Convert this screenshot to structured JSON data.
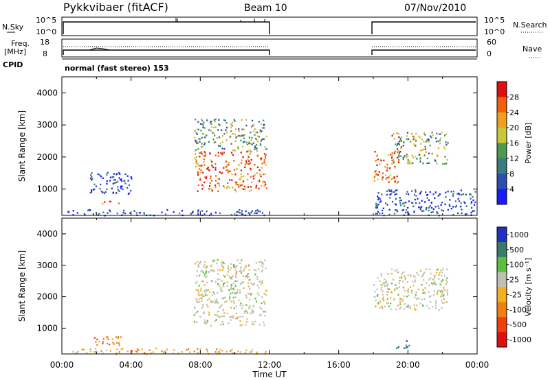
{
  "header": {
    "station": "Pykkvibaer (fitACF)",
    "beam": "Beam 10",
    "date": "07/Nov/2010"
  },
  "strip_labels": {
    "nsky": "N.Sky",
    "nsearch": "N.Search",
    "freq": "Freq.",
    "mhz": "[MHz]",
    "nave": "Nave",
    "cpid": "CPID",
    "cpid_text": "normal (fast stereo) 153",
    "noise_ticks": [
      "10^5",
      "10^0"
    ],
    "freq_ticks": [
      "18",
      "8"
    ],
    "nave_ticks": [
      "60",
      "0"
    ]
  },
  "chart_data": [
    {
      "type": "heatmap",
      "panel": "power",
      "ylabel": "Slant Range [km]",
      "xlabel": "",
      "x_ticks": [
        "00:00",
        "04:00",
        "08:00",
        "12:00",
        "16:00",
        "20:00",
        "00:00"
      ],
      "x_range_hours": [
        0,
        24
      ],
      "y_ticks": [
        1000,
        2000,
        3000,
        4000
      ],
      "y_range_km": [
        180,
        4500
      ],
      "colorbar": {
        "label": "Power [dB]",
        "ticks": [
          "4",
          "8",
          "12",
          "16",
          "20",
          "24",
          "28"
        ],
        "colors": [
          "#1a1aff",
          "#2a4fb0",
          "#3a7a80",
          "#4a9a50",
          "#c8c83a",
          "#f0a020",
          "#f06010",
          "#e01010"
        ]
      },
      "data_gaps_hours": [
        [
          12.0,
          18.0
        ]
      ],
      "regions": [
        {
          "hours": [
            0.2,
            11.8
          ],
          "km": [
            200,
            380
          ],
          "level": "low"
        },
        {
          "hours": [
            1.5,
            4.0
          ],
          "km": [
            850,
            1550
          ],
          "level": "low"
        },
        {
          "hours": [
            2.2,
            3.3
          ],
          "km": [
            500,
            650
          ],
          "level": "high"
        },
        {
          "hours": [
            7.6,
            11.8
          ],
          "km": [
            950,
            2200
          ],
          "level": "high"
        },
        {
          "hours": [
            7.6,
            11.8
          ],
          "km": [
            2200,
            3200
          ],
          "level": "mid"
        },
        {
          "hours": [
            18.0,
            19.5
          ],
          "km": [
            1200,
            2200
          ],
          "level": "high"
        },
        {
          "hours": [
            19.0,
            22.3
          ],
          "km": [
            1800,
            2800
          ],
          "level": "mid"
        },
        {
          "hours": [
            18.0,
            23.9
          ],
          "km": [
            200,
            1000
          ],
          "level": "low"
        }
      ]
    },
    {
      "type": "heatmap",
      "panel": "velocity",
      "ylabel": "Slant Range [km]",
      "xlabel": "Time UT",
      "x_ticks": [
        "00:00",
        "04:00",
        "08:00",
        "12:00",
        "16:00",
        "20:00",
        "00:00"
      ],
      "x_range_hours": [
        0,
        24
      ],
      "y_ticks": [
        1000,
        2000,
        3000,
        4000
      ],
      "y_range_km": [
        180,
        4500
      ],
      "colorbar": {
        "label": "Velocity [m s^-1]",
        "ticks": [
          "1000",
          "500",
          "100",
          "25",
          "-25",
          "-100",
          "-500",
          "-1000"
        ],
        "colors": [
          "#2030c0",
          "#3a7a6a",
          "#5ac040",
          "#c0c0b0",
          "#f0b020",
          "#f08010",
          "#f04010",
          "#e01010"
        ]
      },
      "data_gaps_hours": [
        [
          12.0,
          18.0
        ]
      ],
      "regions": [
        {
          "hours": [
            0.2,
            11.8
          ],
          "km": [
            200,
            380
          ],
          "level": "negative"
        },
        {
          "hours": [
            1.8,
            3.5
          ],
          "km": [
            450,
            750
          ],
          "level": "strong-negative"
        },
        {
          "hours": [
            7.6,
            11.8
          ],
          "km": [
            1100,
            3200
          ],
          "level": "near-zero"
        },
        {
          "hours": [
            18.0,
            22.3
          ],
          "km": [
            1600,
            2900
          ],
          "level": "near-zero"
        },
        {
          "hours": [
            19.2,
            20.1
          ],
          "km": [
            350,
            650
          ],
          "level": "positive"
        }
      ]
    }
  ]
}
